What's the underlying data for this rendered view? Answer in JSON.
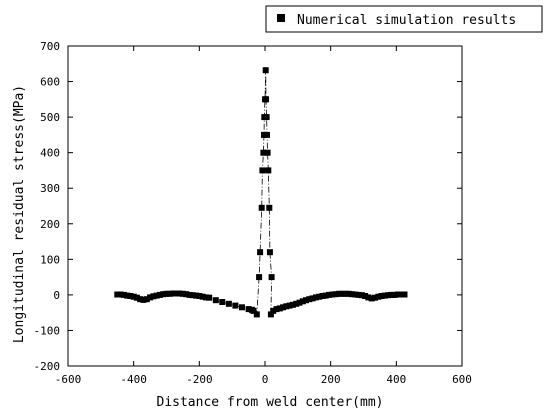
{
  "chart_data": {
    "type": "scatter",
    "title": "",
    "xlabel": "Distance from weld center(mm)",
    "ylabel": "Longitudinal residual stress(MPa)",
    "xlim": [
      -600,
      600
    ],
    "ylim": [
      -200,
      700
    ],
    "xticks": [
      -600,
      -400,
      -200,
      0,
      200,
      400,
      600
    ],
    "yticks": [
      -200,
      -100,
      0,
      100,
      200,
      300,
      400,
      500,
      600,
      700
    ],
    "grid": false,
    "legend": {
      "position": "top-right"
    },
    "series": [
      {
        "name": "Numerical simulation results",
        "marker": "square",
        "color": "#000000",
        "line_style": "dash-dot",
        "points": [
          [
            -450,
            1
          ],
          [
            -440,
            1
          ],
          [
            -430,
            0
          ],
          [
            -420,
            -2
          ],
          [
            -410,
            -3
          ],
          [
            -400,
            -5
          ],
          [
            -390,
            -8
          ],
          [
            -380,
            -12
          ],
          [
            -370,
            -14
          ],
          [
            -360,
            -12
          ],
          [
            -350,
            -7
          ],
          [
            -340,
            -4
          ],
          [
            -330,
            -2
          ],
          [
            -320,
            0
          ],
          [
            -310,
            2
          ],
          [
            -300,
            3
          ],
          [
            -290,
            3
          ],
          [
            -280,
            4
          ],
          [
            -270,
            4
          ],
          [
            -260,
            4
          ],
          [
            -250,
            3
          ],
          [
            -240,
            2
          ],
          [
            -230,
            0
          ],
          [
            -220,
            -1
          ],
          [
            -210,
            -2
          ],
          [
            -200,
            -3
          ],
          [
            -190,
            -5
          ],
          [
            -180,
            -7
          ],
          [
            -170,
            -8
          ],
          [
            -150,
            -15
          ],
          [
            -130,
            -20
          ],
          [
            -110,
            -25
          ],
          [
            -90,
            -30
          ],
          [
            -70,
            -35
          ],
          [
            -50,
            -40
          ],
          [
            -40,
            -42
          ],
          [
            -35,
            -45
          ],
          [
            -25,
            -55
          ],
          [
            -18,
            50
          ],
          [
            -15,
            120
          ],
          [
            -10,
            245
          ],
          [
            -8,
            350
          ],
          [
            -5,
            400
          ],
          [
            -3,
            450
          ],
          [
            -2,
            500
          ],
          [
            0,
            550
          ],
          [
            2,
            632
          ],
          [
            3,
            550
          ],
          [
            5,
            500
          ],
          [
            6,
            450
          ],
          [
            8,
            400
          ],
          [
            10,
            350
          ],
          [
            13,
            245
          ],
          [
            15,
            120
          ],
          [
            20,
            50
          ],
          [
            18,
            -55
          ],
          [
            25,
            -45
          ],
          [
            35,
            -40
          ],
          [
            45,
            -38
          ],
          [
            55,
            -35
          ],
          [
            65,
            -32
          ],
          [
            75,
            -30
          ],
          [
            85,
            -28
          ],
          [
            95,
            -25
          ],
          [
            105,
            -22
          ],
          [
            115,
            -18
          ],
          [
            125,
            -15
          ],
          [
            135,
            -12
          ],
          [
            145,
            -10
          ],
          [
            155,
            -7
          ],
          [
            165,
            -5
          ],
          [
            175,
            -3
          ],
          [
            185,
            -2
          ],
          [
            195,
            0
          ],
          [
            205,
            1
          ],
          [
            215,
            2
          ],
          [
            225,
            3
          ],
          [
            235,
            3
          ],
          [
            245,
            3
          ],
          [
            255,
            3
          ],
          [
            265,
            2
          ],
          [
            275,
            1
          ],
          [
            285,
            0
          ],
          [
            295,
            -1
          ],
          [
            305,
            -3
          ],
          [
            315,
            -7
          ],
          [
            325,
            -10
          ],
          [
            335,
            -8
          ],
          [
            345,
            -5
          ],
          [
            355,
            -3
          ],
          [
            365,
            -2
          ],
          [
            375,
            -1
          ],
          [
            385,
            0
          ],
          [
            395,
            0
          ],
          [
            405,
            1
          ],
          [
            415,
            1
          ],
          [
            425,
            1
          ]
        ]
      }
    ]
  }
}
